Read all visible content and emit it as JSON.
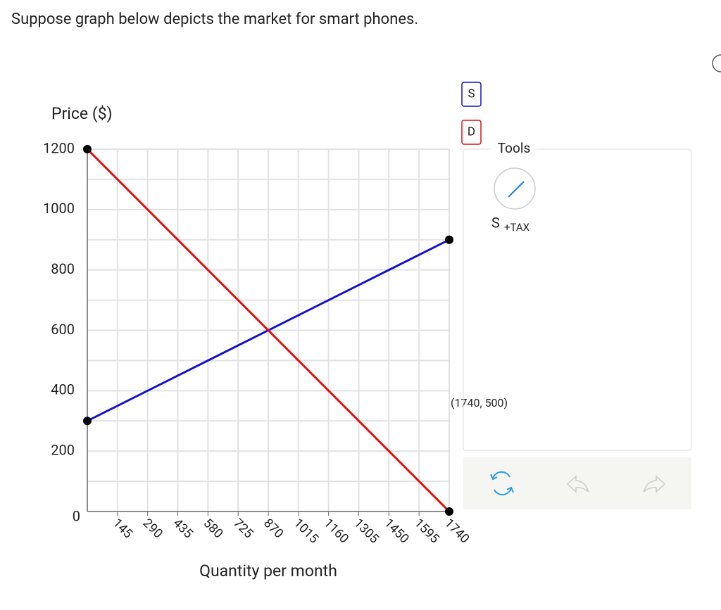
{
  "question": "Suppose graph below depicts the market for smart phones.",
  "chart_data": {
    "type": "line",
    "ylabel": "Price ($)",
    "xlabel": "Quantity per month",
    "x": [
      0,
      1740
    ],
    "series": [
      {
        "name": "S",
        "color": "#1010d0",
        "values": [
          300,
          900
        ]
      },
      {
        "name": "D",
        "color": "#e01010",
        "values": [
          1200,
          0
        ]
      }
    ],
    "xlim": [
      0,
      1740
    ],
    "ylim": [
      0,
      1200
    ],
    "xticks": [
      145,
      290,
      435,
      580,
      725,
      870,
      1015,
      1160,
      1305,
      1450,
      1595,
      1740
    ],
    "yticks": [
      0,
      200,
      400,
      600,
      800,
      1000,
      1200
    ],
    "ygridlines": [
      100,
      200,
      300,
      400,
      500,
      600,
      700,
      800,
      900,
      1000,
      1100,
      1200
    ],
    "grid": true,
    "annotation": "(1740, 500)"
  },
  "tools": {
    "title": "Tools",
    "tool_label": "S",
    "tool_subscript": "+TAX"
  }
}
